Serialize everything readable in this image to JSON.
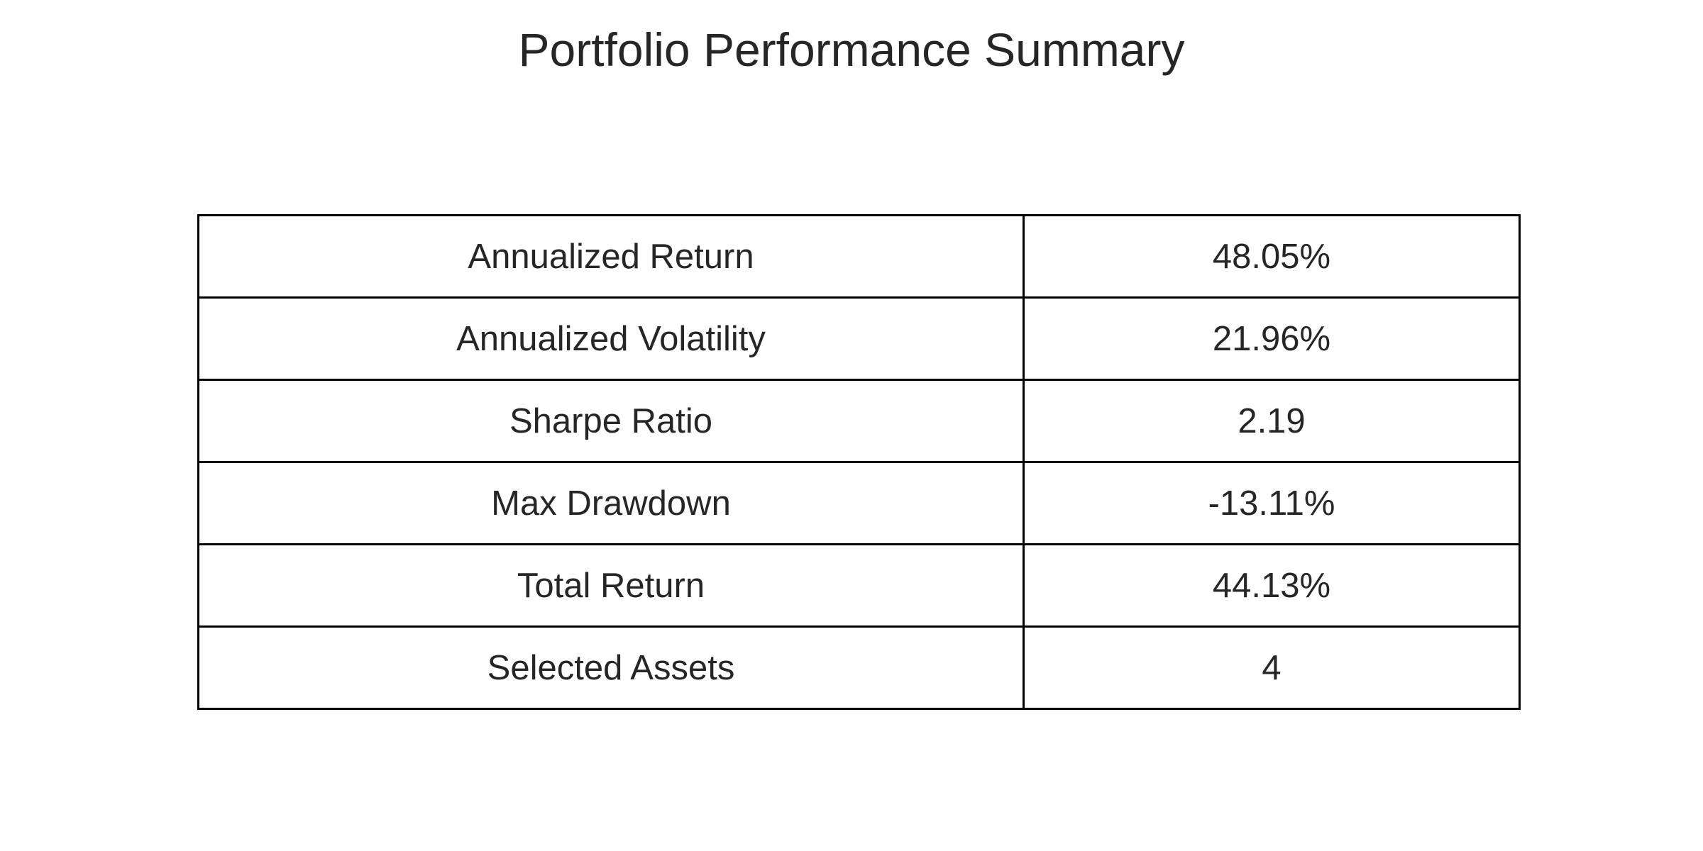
{
  "chart_data": {
    "type": "table",
    "title": "Portfolio Performance Summary",
    "rows": [
      {
        "metric": "Annualized Return",
        "value": "48.05%"
      },
      {
        "metric": "Annualized Volatility",
        "value": "21.96%"
      },
      {
        "metric": "Sharpe Ratio",
        "value": "2.19"
      },
      {
        "metric": "Max Drawdown",
        "value": "-13.11%"
      },
      {
        "metric": "Total Return",
        "value": "44.13%"
      },
      {
        "metric": "Selected Assets",
        "value": "4"
      }
    ]
  }
}
